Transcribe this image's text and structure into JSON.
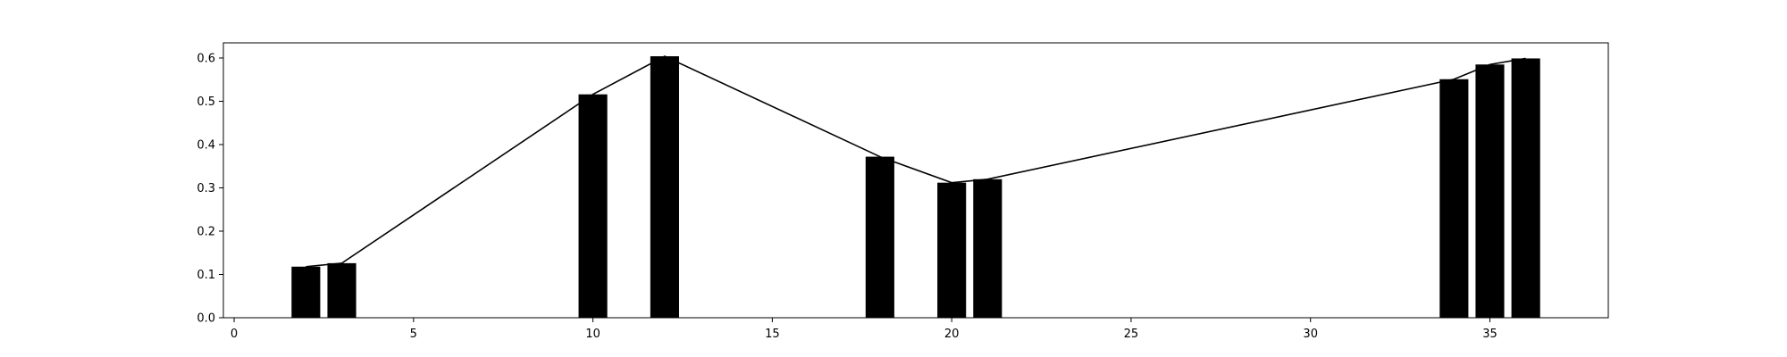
{
  "chart_data": {
    "type": "bar",
    "title": "",
    "xlabel": "",
    "ylabel": "",
    "xlim": [
      -0.3,
      38.3
    ],
    "ylim": [
      0.0,
      0.635
    ],
    "x_ticks": [
      0,
      5,
      10,
      15,
      20,
      25,
      30,
      35
    ],
    "x_tick_labels": [
      "0",
      "5",
      "10",
      "15",
      "20",
      "25",
      "30",
      "35"
    ],
    "y_ticks": [
      0.0,
      0.1,
      0.2,
      0.3,
      0.4,
      0.5,
      0.6
    ],
    "y_tick_labels": [
      "0.0",
      "0.1",
      "0.2",
      "0.3",
      "0.4",
      "0.5",
      "0.6"
    ],
    "grid": false,
    "bar_width": 0.8,
    "bar_color": "#000000",
    "line_color": "#000000",
    "series": [
      {
        "x": [
          2,
          3,
          10,
          12,
          18,
          20,
          21,
          34,
          35,
          36
        ],
        "values": [
          0.118,
          0.126,
          0.516,
          0.604,
          0.372,
          0.312,
          0.32,
          0.551,
          0.585,
          0.599
        ]
      }
    ]
  }
}
